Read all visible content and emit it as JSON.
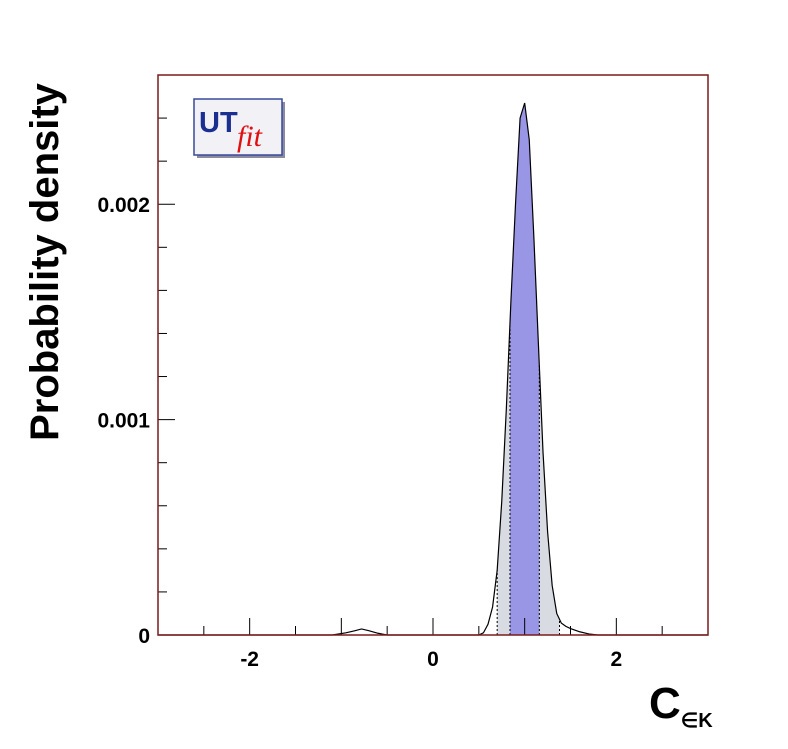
{
  "chart_data": {
    "type": "area",
    "title": "",
    "xlabel": "C",
    "xlabel_subscript": "∈K",
    "ylabel": "Probability density",
    "xlim": [
      -3,
      3
    ],
    "ylim": [
      0,
      0.0026
    ],
    "x_ticks": [
      -2,
      0,
      2
    ],
    "x_tick_labels": [
      "-2",
      "0",
      "2"
    ],
    "y_ticks": [
      0,
      0.001,
      0.002
    ],
    "y_tick_labels": [
      "0",
      "0.001",
      "0.002"
    ],
    "grid": false,
    "logo": {
      "left": "UT",
      "right": "fit"
    },
    "series": [
      {
        "x": [
          -3.0,
          -1.1,
          -0.95,
          -0.85,
          -0.78,
          -0.7,
          -0.6,
          -0.5,
          0.5,
          0.55,
          0.6,
          0.65,
          0.7,
          0.75,
          0.8,
          0.85,
          0.9,
          0.95,
          1.0,
          1.05,
          1.1,
          1.15,
          1.2,
          1.25,
          1.3,
          1.35,
          1.4,
          1.45,
          1.5,
          1.6,
          1.7,
          1.8,
          3.0
        ],
        "y": [
          0,
          0,
          1e-05,
          2e-05,
          2.8e-05,
          2e-05,
          8e-06,
          0,
          0,
          1e-05,
          5e-05,
          0.00013,
          0.0003,
          0.00062,
          0.00105,
          0.00155,
          0.002,
          0.0024,
          0.00247,
          0.0023,
          0.00185,
          0.00135,
          0.00085,
          0.00048,
          0.00023,
          0.0001,
          5.5e-05,
          4e-05,
          3e-05,
          1.5e-05,
          5e-06,
          0,
          0
        ]
      }
    ],
    "intervals": [
      {
        "from": 0.7,
        "to": 1.38,
        "color": "#d8dbe2"
      },
      {
        "from": 0.84,
        "to": 1.16,
        "color": "#9a96e6"
      }
    ],
    "colors": {
      "frame": "#7a1a1a",
      "curve": "#000000",
      "outer_band": "#d8dbe2",
      "inner_band": "#9a96e6"
    }
  }
}
